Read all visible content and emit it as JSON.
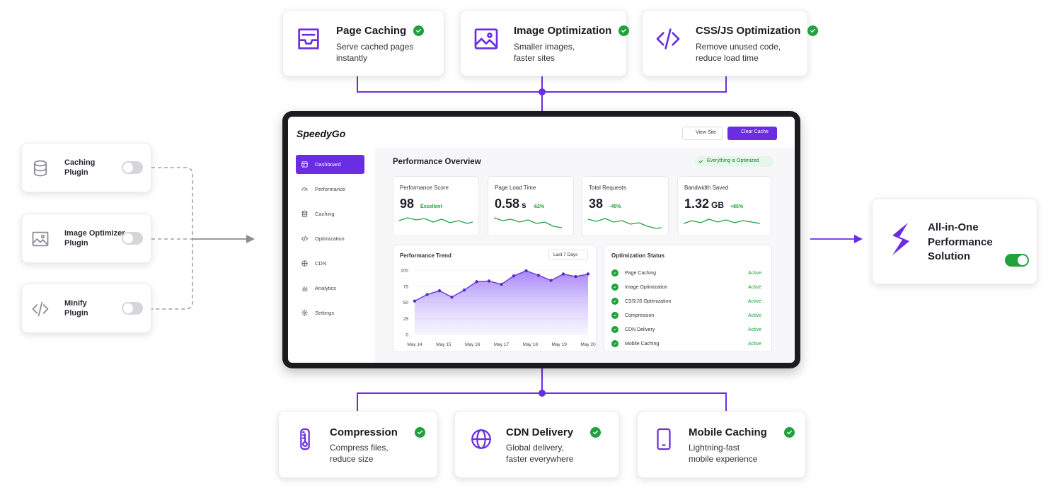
{
  "top_features": [
    {
      "title": "Page Caching",
      "lines": [
        "Serve cached pages",
        "instantly"
      ]
    },
    {
      "title": "Image Optimization",
      "lines": [
        "Smaller images,",
        "faster sites"
      ]
    },
    {
      "title": "CSS/JS Optimization",
      "lines": [
        "Remove unused code,",
        "reduce load time"
      ]
    }
  ],
  "plugins": [
    {
      "lines": [
        "Caching",
        "Plugin"
      ]
    },
    {
      "lines": [
        "Image Optimizer",
        "Plugin"
      ]
    },
    {
      "lines": [
        "Minify",
        "Plugin"
      ]
    }
  ],
  "solution": {
    "lines": [
      "All-in-One",
      "Performance",
      "Solution"
    ]
  },
  "bottom_features": [
    {
      "title": "Compression",
      "lines": [
        "Compress files,",
        "reduce size"
      ]
    },
    {
      "title": "CDN Delivery",
      "lines": [
        "Global delivery,",
        "faster everywhere"
      ]
    },
    {
      "title": "Mobile Caching",
      "lines": [
        "Lightning-fast",
        "mobile experience"
      ]
    }
  ],
  "dashboard": {
    "logo": "SpeedyGo",
    "buttons": [
      "View Site",
      "Clear Cache"
    ],
    "nav": [
      "Dashboard",
      "Performance",
      "Caching",
      "Optimization",
      "CDN",
      "Analytics",
      "Settings"
    ],
    "heading": "Performance Overview",
    "badge": "Everything is Optimized",
    "stats": [
      {
        "label": "Performance Score",
        "value": 98,
        "note": "Excellent"
      },
      {
        "label": "Page Load Time",
        "value": 0.58,
        "unit": "s",
        "note": "-62%"
      },
      {
        "label": "Total Requests",
        "value": 38,
        "note": "-45%"
      },
      {
        "label": "Bandwidth Saved",
        "value": 1.32,
        "unit": "GB",
        "note": "+85%"
      }
    ],
    "trend": {
      "title": "Performance Trend",
      "range": "Last 7 Days",
      "x_labels": [
        "May 14",
        "May 15",
        "May 16",
        "May 17",
        "May 18",
        "May 19",
        "May 20"
      ],
      "values": [
        52,
        62,
        68,
        58,
        69,
        82,
        83,
        78,
        91,
        99,
        92,
        84,
        94,
        90,
        94
      ],
      "ylim": [
        0,
        100
      ],
      "yticks": [
        0,
        25,
        50,
        75,
        100
      ]
    },
    "status": {
      "title": "Optimization Status",
      "items": [
        {
          "name": "Page Caching",
          "state": "Active"
        },
        {
          "name": "Image Optimization",
          "state": "Active"
        },
        {
          "name": "CSS/JS Optimization",
          "state": "Active"
        },
        {
          "name": "Compression",
          "state": "Active"
        },
        {
          "name": "CDN Delivery",
          "state": "Active"
        },
        {
          "name": "Mobile Caching",
          "state": "Active"
        }
      ]
    }
  }
}
